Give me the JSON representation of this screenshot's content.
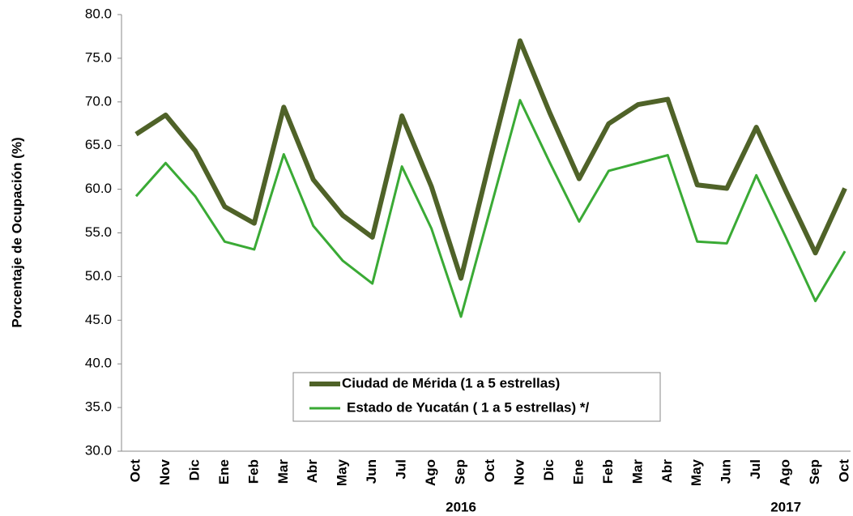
{
  "chart_data": {
    "type": "line",
    "y_label": "Porcentaje de Ocupación (%)",
    "categories": [
      "Oct",
      "Nov",
      "Dic",
      "Ene",
      "Feb",
      "Mar",
      "Abr",
      "May",
      "Jun",
      "Jul",
      "Ago",
      "Sep",
      "Oct",
      "Nov",
      "Dic",
      "Ene",
      "Feb",
      "Mar",
      "Abr",
      "May",
      "Jun",
      "Jul",
      "Ago",
      "Sep",
      "Oct"
    ],
    "x_group_labels": [
      "2016",
      "2017"
    ],
    "series": [
      {
        "name": "Ciudad de Mérida (1 a 5 estrellas)",
        "color": "#4f6228",
        "values": [
          66.3,
          68.5,
          64.4,
          58.0,
          56.1,
          69.4,
          61.1,
          57.0,
          54.5,
          68.4,
          60.3,
          49.8,
          63.6,
          77.0,
          68.8,
          61.2,
          67.5,
          69.7,
          70.3,
          60.5,
          60.1,
          67.1,
          59.8,
          52.7,
          60.1
        ]
      },
      {
        "name": "Estado de Yucatán ( 1 a 5 estrellas) */",
        "color": "#3aaa35",
        "values": [
          59.2,
          63.0,
          59.2,
          54.0,
          53.1,
          64.0,
          55.8,
          51.8,
          49.2,
          62.6,
          55.5,
          45.4,
          57.8,
          70.2,
          63.1,
          56.3,
          62.1,
          63.0,
          63.9,
          54.0,
          53.8,
          61.6,
          54.5,
          47.2,
          52.9
        ]
      }
    ],
    "ylim": [
      30,
      80
    ],
    "yticks": [
      {
        "value": 30,
        "label": "30.0"
      },
      {
        "value": 35,
        "label": "35.0"
      },
      {
        "value": 40,
        "label": "40.0"
      },
      {
        "value": 45,
        "label": "45.0"
      },
      {
        "value": 50,
        "label": "50.0"
      },
      {
        "value": 55,
        "label": "55.0"
      },
      {
        "value": 60,
        "label": "60.0"
      },
      {
        "value": 65,
        "label": "65.0"
      },
      {
        "value": 70,
        "label": "70.0"
      },
      {
        "value": 75,
        "label": "75.0"
      },
      {
        "value": 80,
        "label": "80.0"
      }
    ],
    "grid": false
  }
}
